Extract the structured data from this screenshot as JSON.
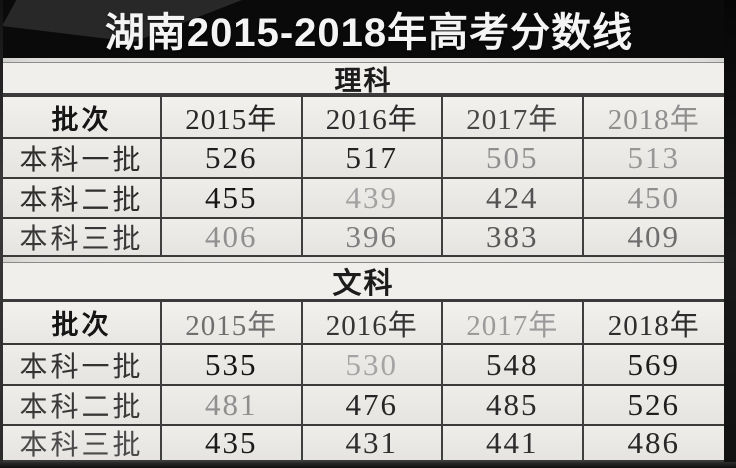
{
  "title": "湖南2015-2018年高考分数线",
  "colors": {
    "banner_bg": "#0a0a0a",
    "title_color": "#f4f4f4",
    "grid_line": "#3a3a3a",
    "page_bg": "#e3e1de",
    "band_bg": "#f1efec"
  },
  "sections": [
    {
      "name": "理科",
      "header": {
        "cols": [
          {
            "t": "批次",
            "c": "#151515"
          },
          {
            "t": "2015年",
            "c": "#262626"
          },
          {
            "t": "2016年",
            "c": "#2c2c2c"
          },
          {
            "t": "2017年",
            "c": "#474747"
          },
          {
            "t": "2018年",
            "c": "#8f8f8f"
          }
        ]
      },
      "rows": [
        {
          "cols": [
            {
              "t": "本科一批",
              "c": "#2e2e2e"
            },
            {
              "t": "526",
              "c": "#1e1e1e"
            },
            {
              "t": "517",
              "c": "#232323"
            },
            {
              "t": "505",
              "c": "#8e8e8e"
            },
            {
              "t": "513",
              "c": "#979797"
            }
          ]
        },
        {
          "cols": [
            {
              "t": "本科二批",
              "c": "#2e2e2e"
            },
            {
              "t": "455",
              "c": "#161616"
            },
            {
              "t": "439",
              "c": "#a2a2a2"
            },
            {
              "t": "424",
              "c": "#525252"
            },
            {
              "t": "450",
              "c": "#8f8f8f"
            }
          ]
        },
        {
          "cols": [
            {
              "t": "本科三批",
              "c": "#383838"
            },
            {
              "t": "406",
              "c": "#909090"
            },
            {
              "t": "396",
              "c": "#7e7e7e"
            },
            {
              "t": "383",
              "c": "#585858"
            },
            {
              "t": "409",
              "c": "#6e6e6e"
            }
          ]
        }
      ]
    },
    {
      "name": "文科",
      "header": {
        "cols": [
          {
            "t": "批次",
            "c": "#151515"
          },
          {
            "t": "2015年",
            "c": "#6f6f6f"
          },
          {
            "t": "2016年",
            "c": "#343434"
          },
          {
            "t": "2017年",
            "c": "#9b9b9b"
          },
          {
            "t": "2018年",
            "c": "#2e2e2e"
          }
        ]
      },
      "rows": [
        {
          "cols": [
            {
              "t": "本科一批",
              "c": "#333333"
            },
            {
              "t": "535",
              "c": "#141414"
            },
            {
              "t": "530",
              "c": "#a5a5a5"
            },
            {
              "t": "548",
              "c": "#242424"
            },
            {
              "t": "569",
              "c": "#1c1c1c"
            }
          ]
        },
        {
          "cols": [
            {
              "t": "本科二批",
              "c": "#3a3a3a"
            },
            {
              "t": "481",
              "c": "#8f8f8f"
            },
            {
              "t": "476",
              "c": "#262626"
            },
            {
              "t": "485",
              "c": "#2a2a2a"
            },
            {
              "t": "526",
              "c": "#1f1f1f"
            }
          ]
        },
        {
          "cols": [
            {
              "t": "本科三批",
              "c": "#4a4a4a"
            },
            {
              "t": "435",
              "c": "#1b1b1b"
            },
            {
              "t": "431",
              "c": "#2f2f2f"
            },
            {
              "t": "441",
              "c": "#2d2d2d"
            },
            {
              "t": "486",
              "c": "#282828"
            }
          ]
        }
      ]
    }
  ],
  "chart_data": [
    {
      "type": "table",
      "title": "理科",
      "columns": [
        "批次",
        "2015年",
        "2016年",
        "2017年",
        "2018年"
      ],
      "rows": [
        [
          "本科一批",
          526,
          517,
          505,
          513
        ],
        [
          "本科二批",
          455,
          439,
          424,
          450
        ],
        [
          "本科三批",
          406,
          396,
          383,
          409
        ]
      ]
    },
    {
      "type": "table",
      "title": "文科",
      "columns": [
        "批次",
        "2015年",
        "2016年",
        "2017年",
        "2018年"
      ],
      "rows": [
        [
          "本科一批",
          535,
          530,
          548,
          569
        ],
        [
          "本科二批",
          481,
          476,
          485,
          526
        ],
        [
          "本科三批",
          435,
          431,
          441,
          486
        ]
      ]
    }
  ]
}
